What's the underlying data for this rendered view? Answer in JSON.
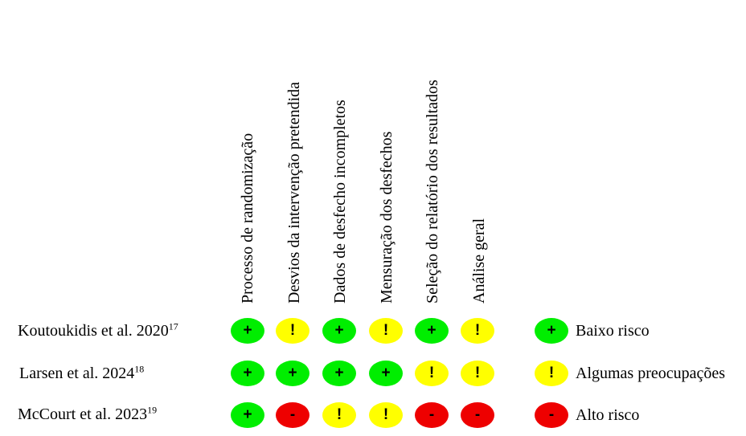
{
  "domains": [
    "Processo de randomização",
    "Desvios da intervenção pretendida",
    "Dados de desfecho incompletos",
    "Mensuração dos desfechos",
    "Seleção do relatório dos resultados",
    "Análise geral"
  ],
  "studies": [
    {
      "name": "Koutoukidis et al. 2020",
      "ref": "17"
    },
    {
      "name": "Larsen et al. 2024",
      "ref": "18"
    },
    {
      "name": "McCourt et al. 2023",
      "ref": "19"
    }
  ],
  "judgements": [
    [
      "low",
      "some",
      "low",
      "some",
      "low",
      "some"
    ],
    [
      "low",
      "low",
      "low",
      "low",
      "some",
      "some"
    ],
    [
      "low",
      "high",
      "some",
      "some",
      "high",
      "high"
    ]
  ],
  "symbols": {
    "low": "+",
    "some": "!",
    "high": "-"
  },
  "colors": {
    "low": "#00ee00",
    "some": "#ffff00",
    "high": "#ee0000"
  },
  "legend": [
    {
      "level": "low",
      "symbol": "+",
      "label": "Baixo risco"
    },
    {
      "level": "some",
      "symbol": "!",
      "label": "Algumas preocupações"
    },
    {
      "level": "high",
      "symbol": "-",
      "label": "Alto risco"
    }
  ]
}
